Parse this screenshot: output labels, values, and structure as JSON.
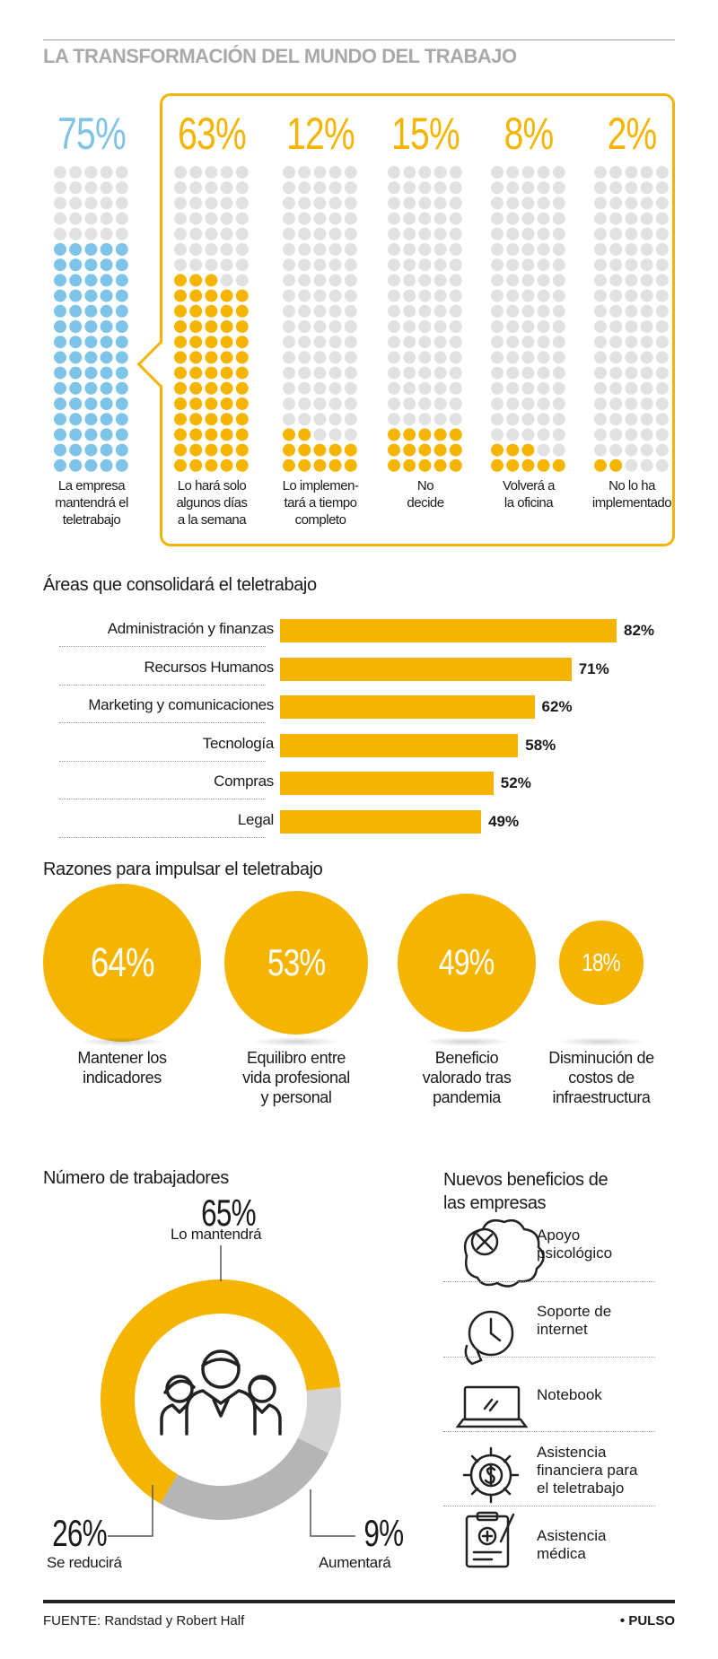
{
  "title": "LA TRANSFORMACIÓN DEL MUNDO DEL TRABAJO",
  "colors": {
    "yellow": "#F4B400",
    "blue": "#7EC3E8",
    "grey_dot": "#E1E1E1",
    "grey_light": "#D3D3D3",
    "grey_mid": "#B5B5B5"
  },
  "chart_data": [
    {
      "type": "waffle",
      "series": [
        {
          "value": 75,
          "label": "75%",
          "text": "La empresa mantendrá el teletrabajo",
          "lines": [
            "La empresa",
            "mantendrá el",
            "teletrabajo"
          ],
          "color": "#7EC3E8"
        },
        {
          "value": 63,
          "label": "63%",
          "text": "Lo hará solo algunos días a la semana",
          "lines": [
            "Lo hará solo",
            "algunos días",
            "a la semana"
          ],
          "color": "#F4B400"
        },
        {
          "value": 12,
          "label": "12%",
          "text": "Lo implementará a tiempo completo",
          "lines": [
            "Lo implemen-",
            "tará a tiempo",
            "completo"
          ],
          "color": "#F4B400"
        },
        {
          "value": 15,
          "label": "15%",
          "text": "No decide",
          "lines": [
            "No",
            "decide"
          ],
          "color": "#F4B400"
        },
        {
          "value": 8,
          "label": "8%",
          "text": "Volverá a la oficina",
          "lines": [
            "Volverá a",
            "la oficina"
          ],
          "color": "#F4B400"
        },
        {
          "value": 2,
          "label": "2%",
          "text": "No lo ha implementado",
          "lines": [
            "No lo ha",
            "implementado"
          ],
          "color": "#F4B400"
        }
      ]
    },
    {
      "type": "bar",
      "title": "Áreas que consolidará el teletrabajo",
      "categories": [
        "Administración y finanzas",
        "Recursos Humanos",
        "Marketing y comunicaciones",
        "Tecnología",
        "Compras",
        "Legal"
      ],
      "values": [
        82,
        71,
        62,
        58,
        52,
        49
      ],
      "value_labels": [
        "82%",
        "71%",
        "62%",
        "58%",
        "52%",
        "49%"
      ]
    },
    {
      "type": "bubble",
      "title": "Razones para impulsar el teletrabajo",
      "items": [
        {
          "value": 64,
          "label": "64%",
          "lines": [
            "Mantener los",
            "indicadores"
          ]
        },
        {
          "value": 53,
          "label": "53%",
          "lines": [
            "Equilibro entre",
            "vida profesional",
            "y personal"
          ]
        },
        {
          "value": 49,
          "label": "49%",
          "lines": [
            "Beneficio",
            "valorado tras",
            "pandemia"
          ]
        },
        {
          "value": 18,
          "label": "18%",
          "lines": [
            "Disminución de",
            "costos de",
            "infraestructura"
          ]
        }
      ]
    },
    {
      "type": "pie",
      "title": "Número de trabajadores",
      "slices": [
        {
          "name": "Lo mantendrá",
          "value": 65,
          "label": "65%",
          "color": "#F4B400"
        },
        {
          "name": "Aumentará",
          "value": 9,
          "label": "9%",
          "color": "#D3D3D3"
        },
        {
          "name": "Se reducirá",
          "value": 26,
          "label": "26%",
          "color": "#B5B5B5"
        }
      ]
    }
  ],
  "benefits": {
    "title_lines": [
      "Nuevos beneficios de",
      "las empresas"
    ],
    "items": [
      {
        "icon": "brain-tools-icon",
        "lines": [
          "Apoyo",
          "psicológico"
        ]
      },
      {
        "icon": "clock-phone-icon",
        "lines": [
          "Soporte de",
          "internet"
        ]
      },
      {
        "icon": "laptop-icon",
        "lines": [
          "Notebook"
        ]
      },
      {
        "icon": "gear-dollar-icon",
        "lines": [
          "Asistencia",
          "financiera para",
          "el teletrabajo"
        ]
      },
      {
        "icon": "medical-clipboard-icon",
        "lines": [
          "Asistencia",
          "médica"
        ]
      }
    ]
  },
  "donut_icon": "people-group-icon",
  "footer": {
    "source": "FUENTE: Randstad y Robert Half",
    "brand": "• PULSO"
  }
}
